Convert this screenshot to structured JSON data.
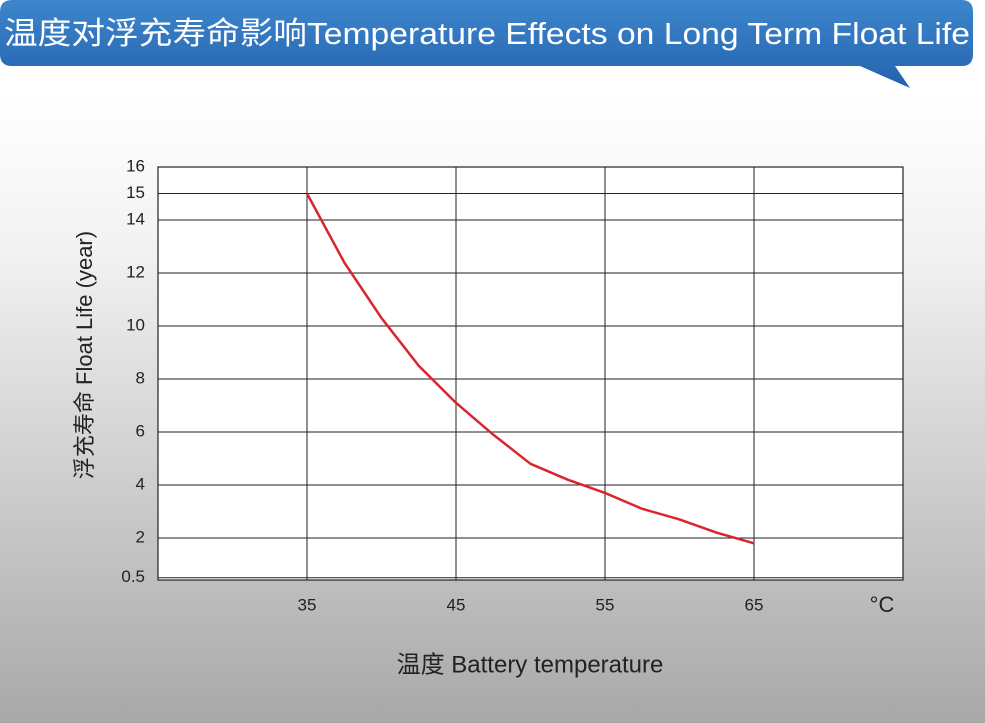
{
  "chart_data": {
    "type": "line",
    "title": "温度对浮充寿命影响Temperature Effects on Long Term Float Life",
    "x_label": "温度  Battery temperature",
    "x_unit": "°C",
    "y_label": "浮充寿命  Float Life (year)",
    "x": [
      35,
      37.5,
      40,
      42.5,
      45,
      47.5,
      50,
      52.5,
      55,
      57.5,
      60,
      62.5,
      65
    ],
    "series": [
      {
        "name": "Float Life",
        "color": "#d9252b",
        "values": [
          15,
          12.4,
          10.3,
          8.5,
          7.1,
          5.9,
          4.8,
          4.2,
          3.7,
          3.1,
          2.7,
          2.2,
          1.8
        ]
      }
    ],
    "xlim": [
      25,
      75
    ],
    "xticks": [
      35,
      45,
      55,
      65
    ],
    "ylim": [
      0,
      16
    ],
    "yticks": [
      0.5,
      2,
      4,
      6,
      8,
      10,
      12,
      14,
      15,
      16
    ],
    "grid": true
  }
}
